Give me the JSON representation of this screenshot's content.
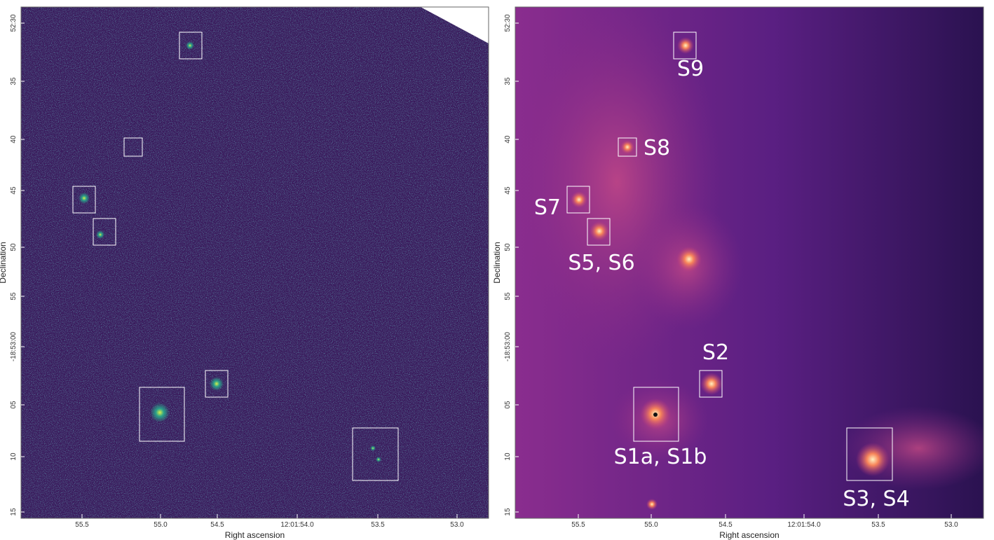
{
  "panels": [
    {
      "y_axis_label": "Declination",
      "x_axis_label": "Right ascension",
      "y_ticks": [
        "52:30",
        "35",
        "40",
        "45",
        "50",
        "55",
        "-18:53:00",
        "05",
        "10",
        "15"
      ],
      "x_ticks": [
        "55.5",
        "55.0",
        "54.5",
        "12:01:54.0",
        "53.5",
        "53.0"
      ]
    },
    {
      "y_axis_label": "Declination",
      "x_axis_label": "Right ascension",
      "y_ticks": [
        "52:30",
        "35",
        "40",
        "45",
        "50",
        "55",
        "-18:53:00",
        "05",
        "10",
        "15"
      ],
      "x_ticks": [
        "55.5",
        "55.0",
        "54.5",
        "12:01:54.0",
        "53.5",
        "53.0"
      ],
      "regions": [
        "S9",
        "S8",
        "S7",
        "S5, S6",
        "S2",
        "S1a, S1b",
        "S3, S4"
      ]
    }
  ]
}
